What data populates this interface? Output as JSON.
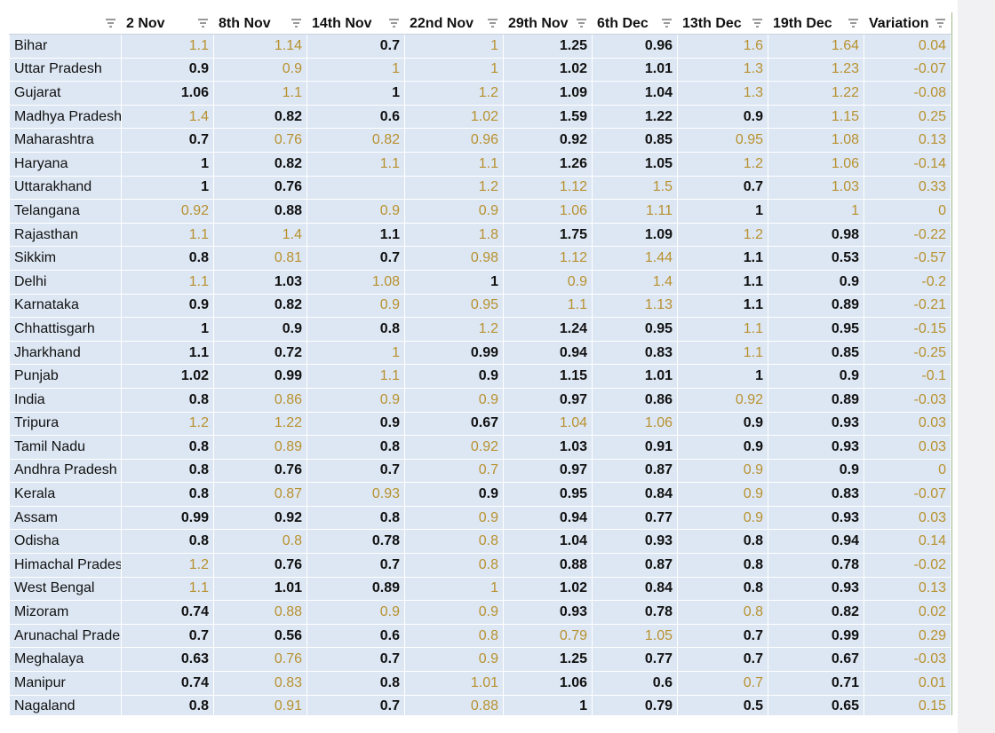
{
  "table": {
    "columns": [
      "2 Nov",
      "8th Nov",
      "14th Nov",
      "22nd Nov",
      "29th Nov",
      "6th Dec",
      "13th Dec",
      "19th Dec",
      "Variation"
    ],
    "rows": [
      {
        "name": "Bihar",
        "values": [
          1.1,
          1.14,
          0.7,
          1,
          1.25,
          0.96,
          1.6,
          1.64,
          0.04
        ],
        "highlighted": [
          0,
          1,
          3,
          6,
          7,
          8
        ]
      },
      {
        "name": "Uttar Pradesh",
        "values": [
          0.9,
          0.9,
          1,
          1,
          1.02,
          1.01,
          1.3,
          1.23,
          -0.07
        ],
        "highlighted": [
          1,
          2,
          3,
          6,
          7,
          8
        ]
      },
      {
        "name": "Gujarat",
        "values": [
          1.06,
          1.1,
          1,
          1.2,
          1.09,
          1.04,
          1.3,
          1.22,
          -0.08
        ],
        "highlighted": [
          1,
          3,
          6,
          7,
          8
        ]
      },
      {
        "name": "Madhya Pradesh",
        "values": [
          1.4,
          0.82,
          0.6,
          1.02,
          1.59,
          1.22,
          0.9,
          1.15,
          0.25
        ],
        "highlighted": [
          0,
          3,
          7,
          8
        ]
      },
      {
        "name": "Maharashtra",
        "values": [
          0.7,
          0.76,
          0.82,
          0.96,
          0.92,
          0.85,
          0.95,
          1.08,
          0.13
        ],
        "highlighted": [
          1,
          2,
          3,
          6,
          7,
          8
        ]
      },
      {
        "name": "Haryana",
        "values": [
          1,
          0.82,
          1.1,
          1.1,
          1.26,
          1.05,
          1.2,
          1.06,
          -0.14
        ],
        "highlighted": [
          2,
          3,
          6,
          7,
          8
        ]
      },
      {
        "name": "Uttarakhand",
        "values": [
          1,
          0.76,
          null,
          1.2,
          1.12,
          1.5,
          0.7,
          1.03,
          0.33
        ],
        "highlighted": [
          3,
          4,
          5,
          7,
          8
        ]
      },
      {
        "name": "Telangana",
        "values": [
          0.92,
          0.88,
          0.9,
          0.9,
          1.06,
          1.11,
          1,
          1,
          0
        ],
        "highlighted": [
          0,
          2,
          3,
          4,
          5,
          7,
          8
        ]
      },
      {
        "name": "Rajasthan",
        "values": [
          1.1,
          1.4,
          1.1,
          1.8,
          1.75,
          1.09,
          1.2,
          0.98,
          -0.22
        ],
        "highlighted": [
          0,
          1,
          3,
          6,
          8
        ]
      },
      {
        "name": "Sikkim",
        "values": [
          0.8,
          0.81,
          0.7,
          0.98,
          1.12,
          1.44,
          1.1,
          0.53,
          -0.57
        ],
        "highlighted": [
          1,
          3,
          4,
          5,
          8
        ]
      },
      {
        "name": "Delhi",
        "values": [
          1.1,
          1.03,
          1.08,
          1,
          0.9,
          1.4,
          1.1,
          0.9,
          -0.2
        ],
        "highlighted": [
          0,
          2,
          4,
          5,
          8
        ]
      },
      {
        "name": "Karnataka",
        "values": [
          0.9,
          0.82,
          0.9,
          0.95,
          1.1,
          1.13,
          1.1,
          0.89,
          -0.21
        ],
        "highlighted": [
          2,
          3,
          4,
          5,
          8
        ]
      },
      {
        "name": "Chhattisgarh",
        "values": [
          1,
          0.9,
          0.8,
          1.2,
          1.24,
          0.95,
          1.1,
          0.95,
          -0.15
        ],
        "highlighted": [
          3,
          6,
          8
        ]
      },
      {
        "name": "Jharkhand",
        "values": [
          1.1,
          0.72,
          1,
          0.99,
          0.94,
          0.83,
          1.1,
          0.85,
          -0.25
        ],
        "highlighted": [
          2,
          6,
          8
        ]
      },
      {
        "name": "Punjab",
        "values": [
          1.02,
          0.99,
          1.1,
          0.9,
          1.15,
          1.01,
          1,
          0.9,
          -0.1
        ],
        "highlighted": [
          2,
          8
        ]
      },
      {
        "name": "India",
        "values": [
          0.8,
          0.86,
          0.9,
          0.9,
          0.97,
          0.86,
          0.92,
          0.89,
          -0.03
        ],
        "highlighted": [
          1,
          2,
          3,
          6,
          8
        ]
      },
      {
        "name": "Tripura",
        "values": [
          1.2,
          1.22,
          0.9,
          0.67,
          1.04,
          1.06,
          0.9,
          0.93,
          0.03
        ],
        "highlighted": [
          0,
          1,
          4,
          5,
          8
        ]
      },
      {
        "name": "Tamil Nadu",
        "values": [
          0.8,
          0.89,
          0.8,
          0.92,
          1.03,
          0.91,
          0.9,
          0.93,
          0.03
        ],
        "highlighted": [
          1,
          3,
          8
        ]
      },
      {
        "name": "Andhra Pradesh",
        "values": [
          0.8,
          0.76,
          0.7,
          0.7,
          0.97,
          0.87,
          0.9,
          0.9,
          0
        ],
        "highlighted": [
          3,
          6,
          8
        ]
      },
      {
        "name": "Kerala",
        "values": [
          0.8,
          0.87,
          0.93,
          0.9,
          0.95,
          0.84,
          0.9,
          0.83,
          -0.07
        ],
        "highlighted": [
          1,
          2,
          6,
          8
        ]
      },
      {
        "name": "Assam",
        "values": [
          0.99,
          0.92,
          0.8,
          0.9,
          0.94,
          0.77,
          0.9,
          0.93,
          0.03
        ],
        "highlighted": [
          3,
          6,
          8
        ]
      },
      {
        "name": "Odisha",
        "values": [
          0.8,
          0.8,
          0.78,
          0.8,
          1.04,
          0.93,
          0.8,
          0.94,
          0.14
        ],
        "highlighted": [
          1,
          3,
          8
        ]
      },
      {
        "name": "Himachal Pradesh",
        "values": [
          1.2,
          0.76,
          0.7,
          0.8,
          0.88,
          0.87,
          0.8,
          0.78,
          -0.02
        ],
        "highlighted": [
          0,
          3,
          8
        ]
      },
      {
        "name": "West Bengal",
        "values": [
          1.1,
          1.01,
          0.89,
          1,
          1.02,
          0.84,
          0.8,
          0.93,
          0.13
        ],
        "highlighted": [
          0,
          3,
          8
        ]
      },
      {
        "name": "Mizoram",
        "values": [
          0.74,
          0.88,
          0.9,
          0.9,
          0.93,
          0.78,
          0.8,
          0.82,
          0.02
        ],
        "highlighted": [
          1,
          2,
          3,
          6,
          8
        ]
      },
      {
        "name": "Arunachal Pradesh",
        "values": [
          0.7,
          0.56,
          0.6,
          0.8,
          0.79,
          1.05,
          0.7,
          0.99,
          0.29
        ],
        "highlighted": [
          3,
          4,
          5,
          8
        ]
      },
      {
        "name": "Meghalaya",
        "values": [
          0.63,
          0.76,
          0.7,
          0.9,
          1.25,
          0.77,
          0.7,
          0.67,
          -0.03
        ],
        "highlighted": [
          1,
          3,
          8
        ]
      },
      {
        "name": "Manipur",
        "values": [
          0.74,
          0.83,
          0.8,
          1.01,
          1.06,
          0.6,
          0.7,
          0.71,
          0.01
        ],
        "highlighted": [
          1,
          3,
          6,
          8
        ]
      },
      {
        "name": "Nagaland",
        "values": [
          0.8,
          0.91,
          0.7,
          0.88,
          1,
          0.79,
          0.5,
          0.65,
          0.15
        ],
        "highlighted": [
          1,
          3,
          8
        ]
      }
    ]
  }
}
